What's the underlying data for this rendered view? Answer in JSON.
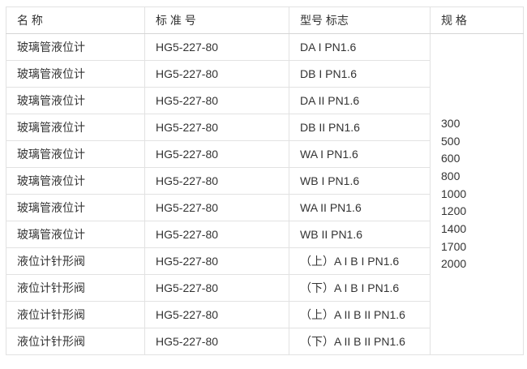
{
  "table": {
    "columns": [
      {
        "key": "name",
        "label": "名 称"
      },
      {
        "key": "standard",
        "label": "标 准 号"
      },
      {
        "key": "model",
        "label": "型号 标志"
      },
      {
        "key": "spec",
        "label": "规 格"
      }
    ],
    "rows": [
      {
        "name": "玻璃管液位计",
        "standard": "HG5-227-80",
        "model": "DA I PN1.6"
      },
      {
        "name": "玻璃管液位计",
        "standard": "HG5-227-80",
        "model": "DB I PN1.6"
      },
      {
        "name": "玻璃管液位计",
        "standard": "HG5-227-80",
        "model": "DA II PN1.6"
      },
      {
        "name": "玻璃管液位计",
        "standard": "HG5-227-80",
        "model": "DB II PN1.6"
      },
      {
        "name": "玻璃管液位计",
        "standard": "HG5-227-80",
        "model": "WA I PN1.6"
      },
      {
        "name": "玻璃管液位计",
        "standard": "HG5-227-80",
        "model": "WB I PN1.6"
      },
      {
        "name": "玻璃管液位计",
        "standard": "HG5-227-80",
        "model": "WA II PN1.6"
      },
      {
        "name": "玻璃管液位计",
        "standard": "HG5-227-80",
        "model": "WB II PN1.6"
      },
      {
        "name": "液位计针形阀",
        "standard": "HG5-227-80",
        "model": "（上）A I B I PN1.6"
      },
      {
        "name": "液位计针形阀",
        "standard": "HG5-227-80",
        "model": "（下）A I B I PN1.6"
      },
      {
        "name": "液位计针形阀",
        "standard": "HG5-227-80",
        "model": "（上）A II B II PN1.6"
      },
      {
        "name": "液位计针形阀",
        "standard": "HG5-227-80",
        "model": "（下）A II B II PN1.6"
      }
    ],
    "spec_values": [
      "300",
      "500",
      "600",
      "800",
      "1000",
      "1200",
      "1400",
      "1700",
      "2000"
    ]
  },
  "colors": {
    "border": "#e2e2e2",
    "header_border": "#d5d5d5",
    "text": "#333333",
    "background": "#ffffff"
  }
}
